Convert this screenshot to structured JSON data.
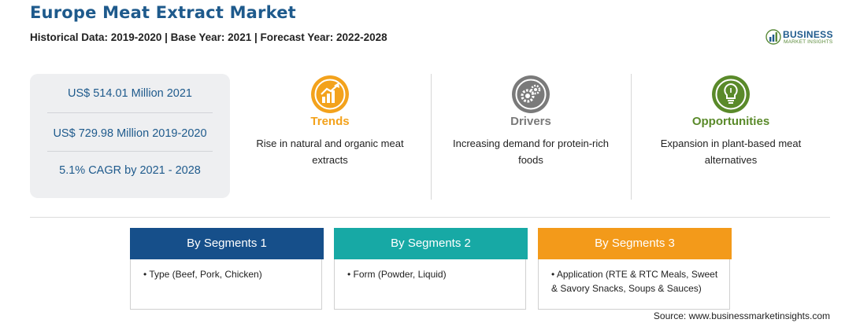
{
  "header": {
    "title": "Europe Meat Extract Market",
    "subtitle": "Historical Data: 2019-2020 | Base Year: 2021 | Forecast Year: 2022-2028"
  },
  "logo": {
    "brand": "BUSINESS",
    "tagline": "MARKET INSIGHTS",
    "icon": "bar-chart-globe-icon"
  },
  "stats": [
    "US$ 514.01 Million 2021",
    "US$ 729.98 Million 2019-2020",
    "5.1% CAGR by 2021 - 2028"
  ],
  "columns": [
    {
      "heading": "Trends",
      "description": "Rise in natural and organic meat extracts",
      "icon": "trend-chart-icon",
      "color": "#f3a21c"
    },
    {
      "heading": "Drivers",
      "description": "Increasing demand for protein-rich foods",
      "icon": "gears-icon",
      "color": "#7a7a7a"
    },
    {
      "heading": "Opportunities",
      "description": "Expansion in plant-based meat alternatives",
      "icon": "lightbulb-icon",
      "color": "#5a8a2a"
    }
  ],
  "segments": [
    {
      "title": "By Segments 1",
      "item": "Type (Beef, Pork, Chicken)",
      "color": "#164f8a"
    },
    {
      "title": "By Segments 2",
      "item": "Form (Powder, Liquid)",
      "color": "#17a9a5"
    },
    {
      "title": "By Segments 3",
      "item": "Application (RTE & RTC Meals, Sweet & Savory Snacks, Soups & Sauces)",
      "color": "#f39a1a"
    }
  ],
  "source": "Source: www.businessmarketinsights.com"
}
